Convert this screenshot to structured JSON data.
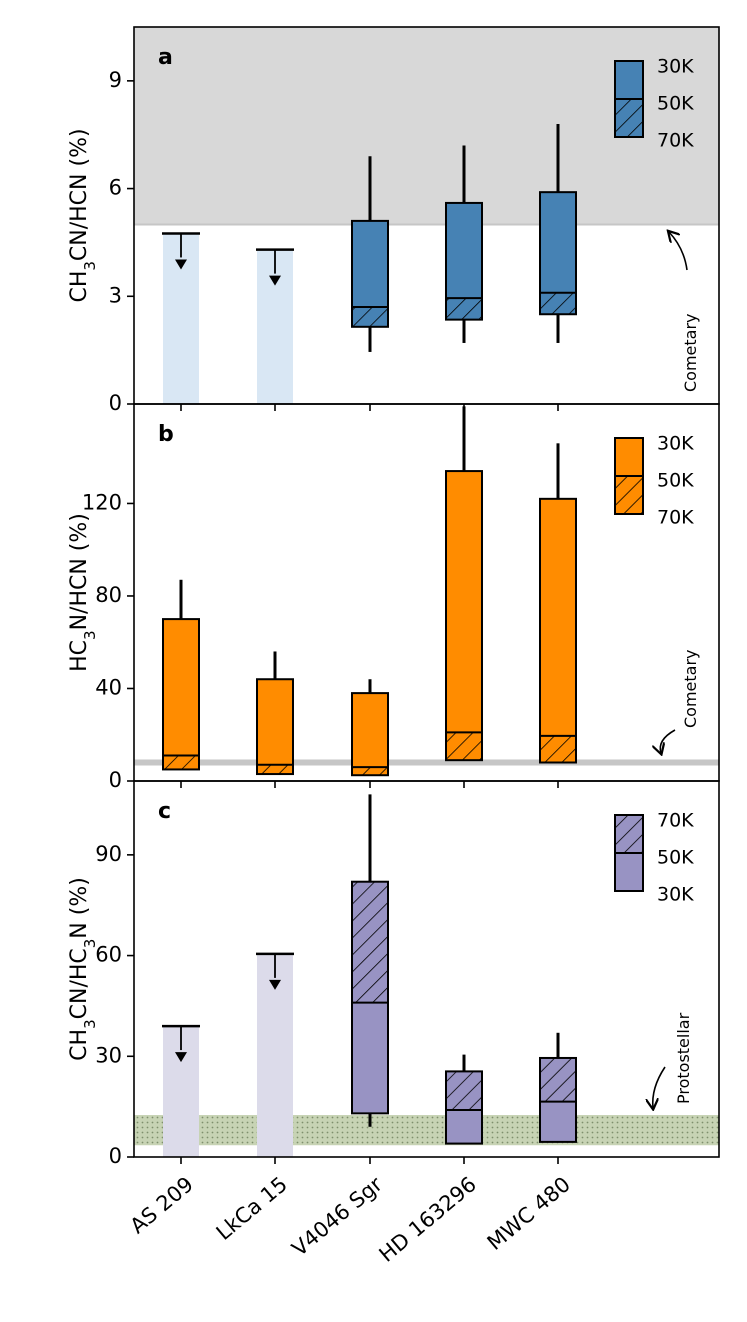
{
  "colors": {
    "a": "#4682b4",
    "b": "#ff8c00",
    "c": "#9893c3",
    "a_light": "#d9e7f4",
    "c_light": "#dcdbea",
    "grey_region": "#d8d8d8",
    "grey_line": "#c6c6c6",
    "green_band": "#c7d3b4"
  },
  "chart_data": [
    {
      "type": "bar",
      "panel": "a",
      "ylabel_parts": [
        [
          "CH",
          ""
        ],
        [
          "3",
          "sub"
        ],
        [
          "CN/HCN (%)",
          ""
        ]
      ],
      "ylim": [
        0,
        10.5
      ],
      "yticks": [
        0,
        3,
        6,
        9
      ],
      "categories": [
        "AS 209",
        "LkCa 15",
        "V4046 Sgr",
        "HD 163296",
        "MWC 480"
      ],
      "upper_limits": [
        {
          "source": "AS 209",
          "value": 4.75
        },
        {
          "source": "LkCa 15",
          "value": 4.3
        }
      ],
      "boxes": [
        {
          "source": "V4046 Sgr",
          "low": 2.15,
          "mid": 2.7,
          "high": 5.1,
          "err_low": 1.45,
          "err_high": 6.9
        },
        {
          "source": "HD 163296",
          "low": 2.35,
          "mid": 2.95,
          "high": 5.6,
          "err_low": 1.7,
          "err_high": 7.2
        },
        {
          "source": "MWC 480",
          "low": 2.5,
          "mid": 3.1,
          "high": 5.9,
          "err_low": 1.7,
          "err_high": 7.8
        }
      ],
      "legend": [
        "30K",
        "50K",
        "70K"
      ],
      "reference": {
        "label": "Cometary",
        "type": "region_above",
        "value": 5.0
      }
    },
    {
      "type": "bar",
      "panel": "b",
      "ylabel_parts": [
        [
          "HC",
          ""
        ],
        [
          "3",
          "sub"
        ],
        [
          "N/HCN (%)",
          ""
        ]
      ],
      "ylim": [
        0,
        163
      ],
      "yticks": [
        0,
        40,
        80,
        120
      ],
      "categories": [
        "AS 209",
        "LkCa 15",
        "V4046 Sgr",
        "HD 163296",
        "MWC 480"
      ],
      "upper_limits": [],
      "boxes": [
        {
          "source": "AS 209",
          "low": 5,
          "mid": 11,
          "high": 70,
          "err_low": 5,
          "err_high": 87
        },
        {
          "source": "LkCa 15",
          "low": 3,
          "mid": 7,
          "high": 44,
          "err_low": 3,
          "err_high": 56
        },
        {
          "source": "V4046 Sgr",
          "low": 2.5,
          "mid": 6,
          "high": 38,
          "err_low": 2.5,
          "err_high": 44
        },
        {
          "source": "HD 163296",
          "low": 9,
          "mid": 21,
          "high": 134,
          "err_low": 9,
          "err_high": 162
        },
        {
          "source": "MWC 480",
          "low": 8,
          "mid": 19.5,
          "high": 122,
          "err_low": 8,
          "err_high": 146
        }
      ],
      "legend": [
        "30K",
        "50K",
        "70K"
      ],
      "reference": {
        "label": "Cometary",
        "type": "line",
        "value": 8
      }
    },
    {
      "type": "bar",
      "panel": "c",
      "ylabel_parts": [
        [
          "CH",
          ""
        ],
        [
          "3",
          "sub"
        ],
        [
          "CN/HC",
          ""
        ],
        [
          "3",
          "sub"
        ],
        [
          "N (%)",
          ""
        ]
      ],
      "ylim": [
        0,
        112
      ],
      "yticks": [
        0,
        30,
        60,
        90
      ],
      "categories": [
        "AS 209",
        "LkCa 15",
        "V4046 Sgr",
        "HD 163296",
        "MWC 480"
      ],
      "upper_limits": [
        {
          "source": "AS 209",
          "value": 39
        },
        {
          "source": "LkCa 15",
          "value": 60.5
        }
      ],
      "boxes": [
        {
          "source": "V4046 Sgr",
          "low": 13,
          "mid": 46,
          "high": 82,
          "err_low": 9,
          "err_high": 108
        },
        {
          "source": "HD 163296",
          "low": 4,
          "mid": 14,
          "high": 25.5,
          "err_low": 4,
          "err_high": 30.5
        },
        {
          "source": "MWC 480",
          "low": 4.5,
          "mid": 16.5,
          "high": 29.5,
          "err_low": 4.5,
          "err_high": 37
        }
      ],
      "legend": [
        "70K",
        "50K",
        "30K"
      ],
      "reference": {
        "label": "Protostellar",
        "type": "band",
        "range": [
          3.5,
          12.5
        ]
      }
    }
  ]
}
